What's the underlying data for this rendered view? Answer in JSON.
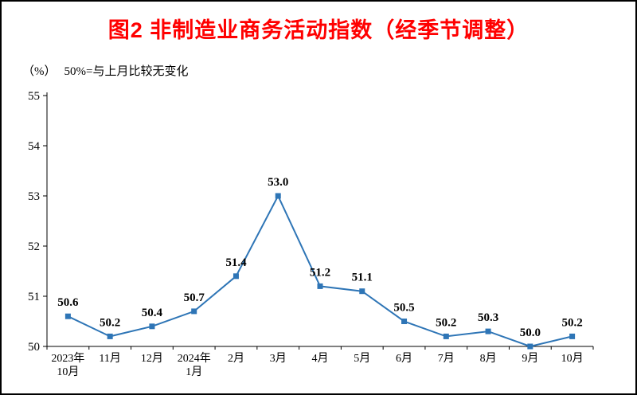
{
  "chart_data": {
    "type": "line",
    "title": "图2 非制造业商务活动指数（经季节调整）",
    "unit_label": "（%）",
    "note": "50%=与上月比较无变化",
    "categories": [
      "2023年\n10月",
      "11月",
      "12月",
      "2024年\n1月",
      "2月",
      "3月",
      "4月",
      "5月",
      "6月",
      "7月",
      "8月",
      "9月",
      "10月"
    ],
    "values": [
      50.6,
      50.2,
      50.4,
      50.7,
      51.4,
      53.0,
      51.2,
      51.1,
      50.5,
      50.2,
      50.3,
      50.0,
      50.2
    ],
    "series_name": "非制造业商务活动指数",
    "ylim": [
      50,
      55
    ],
    "y_ticks": [
      50,
      51,
      52,
      53,
      54,
      55
    ],
    "xlabel": "",
    "ylabel": "%",
    "grid": false,
    "legend": "none",
    "line_color": "#2E75B6",
    "marker": "square",
    "title_color": "#FF0000",
    "axis_color": "#000000"
  }
}
